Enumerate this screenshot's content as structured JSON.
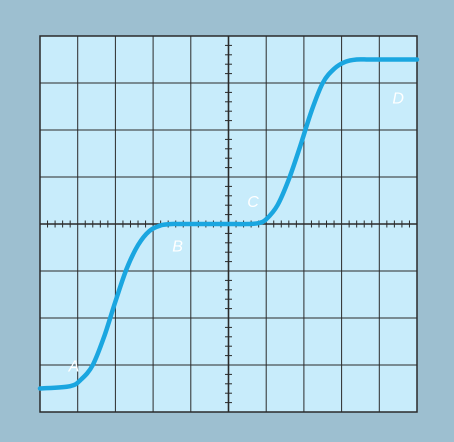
{
  "colors": {
    "bezel": "#9dbfd0",
    "screen": "#c8ecfb",
    "grid": "#2a2a2a",
    "trace": "#1aa6e0",
    "label": "#ffffff"
  },
  "chart_data": {
    "type": "line",
    "grid": {
      "divisions_x": 10,
      "divisions_y": 8,
      "minor_ticks_per_division": 5
    },
    "xlim": [
      -5,
      5
    ],
    "ylim": [
      -4,
      4
    ],
    "trace": {
      "x": [
        -5.0,
        -4.2,
        -3.9,
        -3.6,
        -3.3,
        -3.0,
        -2.7,
        -2.4,
        -2.1,
        -1.8,
        -1.5,
        -1.3,
        -1.0,
        -0.5,
        0.0,
        0.5,
        0.8,
        1.0,
        1.3,
        1.6,
        1.9,
        2.2,
        2.5,
        2.8,
        3.1,
        3.4,
        3.7,
        4.0,
        5.0
      ],
      "y": [
        -3.5,
        -3.45,
        -3.3,
        -3.0,
        -2.4,
        -1.65,
        -0.95,
        -0.45,
        -0.15,
        -0.03,
        0.0,
        0.0,
        0.0,
        0.0,
        0.0,
        0.0,
        0.02,
        0.1,
        0.4,
        0.95,
        1.65,
        2.4,
        3.0,
        3.3,
        3.45,
        3.5,
        3.5,
        3.5,
        3.5
      ]
    },
    "annotations": [
      {
        "text": "A",
        "x": -4.1,
        "y": -3.05
      },
      {
        "text": "B",
        "x": -1.35,
        "y": -0.5
      },
      {
        "text": "C",
        "x": 0.65,
        "y": 0.45
      },
      {
        "text": "D",
        "x": 4.5,
        "y": 2.65
      }
    ]
  }
}
